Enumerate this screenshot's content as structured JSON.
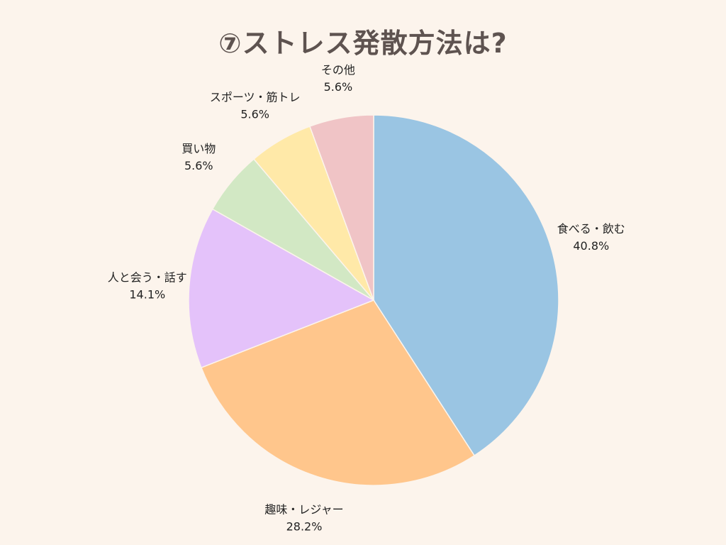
{
  "chart_data": {
    "type": "pie",
    "title": "⑦ストレス発散方法は?",
    "slices": [
      {
        "label": "食べる・飲む",
        "value": 40.8,
        "value_label": "40.8%",
        "color": "#9ac5e3"
      },
      {
        "label": "趣味・レジャー",
        "value": 28.2,
        "value_label": "28.2%",
        "color": "#ffc68c"
      },
      {
        "label": "人と会う・話す",
        "value": 14.1,
        "value_label": "14.1%",
        "color": "#e4c2fa"
      },
      {
        "label": "買い物",
        "value": 5.6,
        "value_label": "5.6%",
        "color": "#d2e8c4"
      },
      {
        "label": "スポーツ・筋トレ",
        "value": 5.6,
        "value_label": "5.6%",
        "color": "#ffe9a8"
      },
      {
        "label": "その他",
        "value": 5.6,
        "value_label": "5.6%",
        "color": "#f0c4c6"
      }
    ],
    "start": "12 o'clock",
    "direction": "clockwise"
  }
}
